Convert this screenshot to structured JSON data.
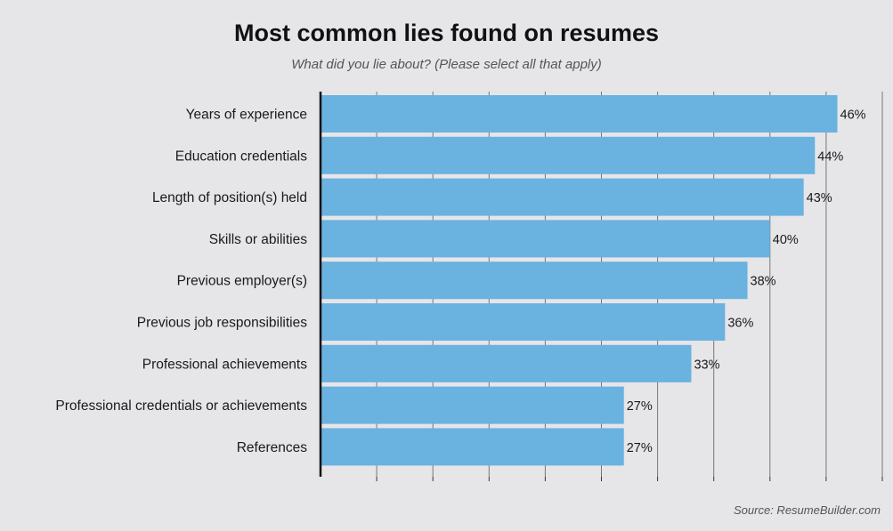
{
  "chart_data": {
    "type": "bar",
    "orientation": "horizontal",
    "title": "Most common lies found on resumes",
    "subtitle": "What did you lie about? (Please select all that apply)",
    "source": "Source: ResumeBuilder.com",
    "categories": [
      "Years of experience",
      "Education credentials",
      "Length of position(s) held",
      "Skills or abilities",
      "Previous employer(s)",
      "Previous job responsibilities",
      "Professional achievements",
      "Professional credentials or achievements",
      "References"
    ],
    "values": [
      46,
      44,
      43,
      40,
      38,
      36,
      33,
      27,
      27
    ],
    "value_labels": [
      "46%",
      "44%",
      "43%",
      "40%",
      "38%",
      "36%",
      "33%",
      "27%",
      "27%"
    ],
    "xlim": [
      0,
      50
    ],
    "xtick_step": 5,
    "grid": true,
    "xaxis_tick_labels": false,
    "bar_color": "#6ab2e0",
    "background_color": "#e6e5e8",
    "grid_color": "#777777"
  }
}
